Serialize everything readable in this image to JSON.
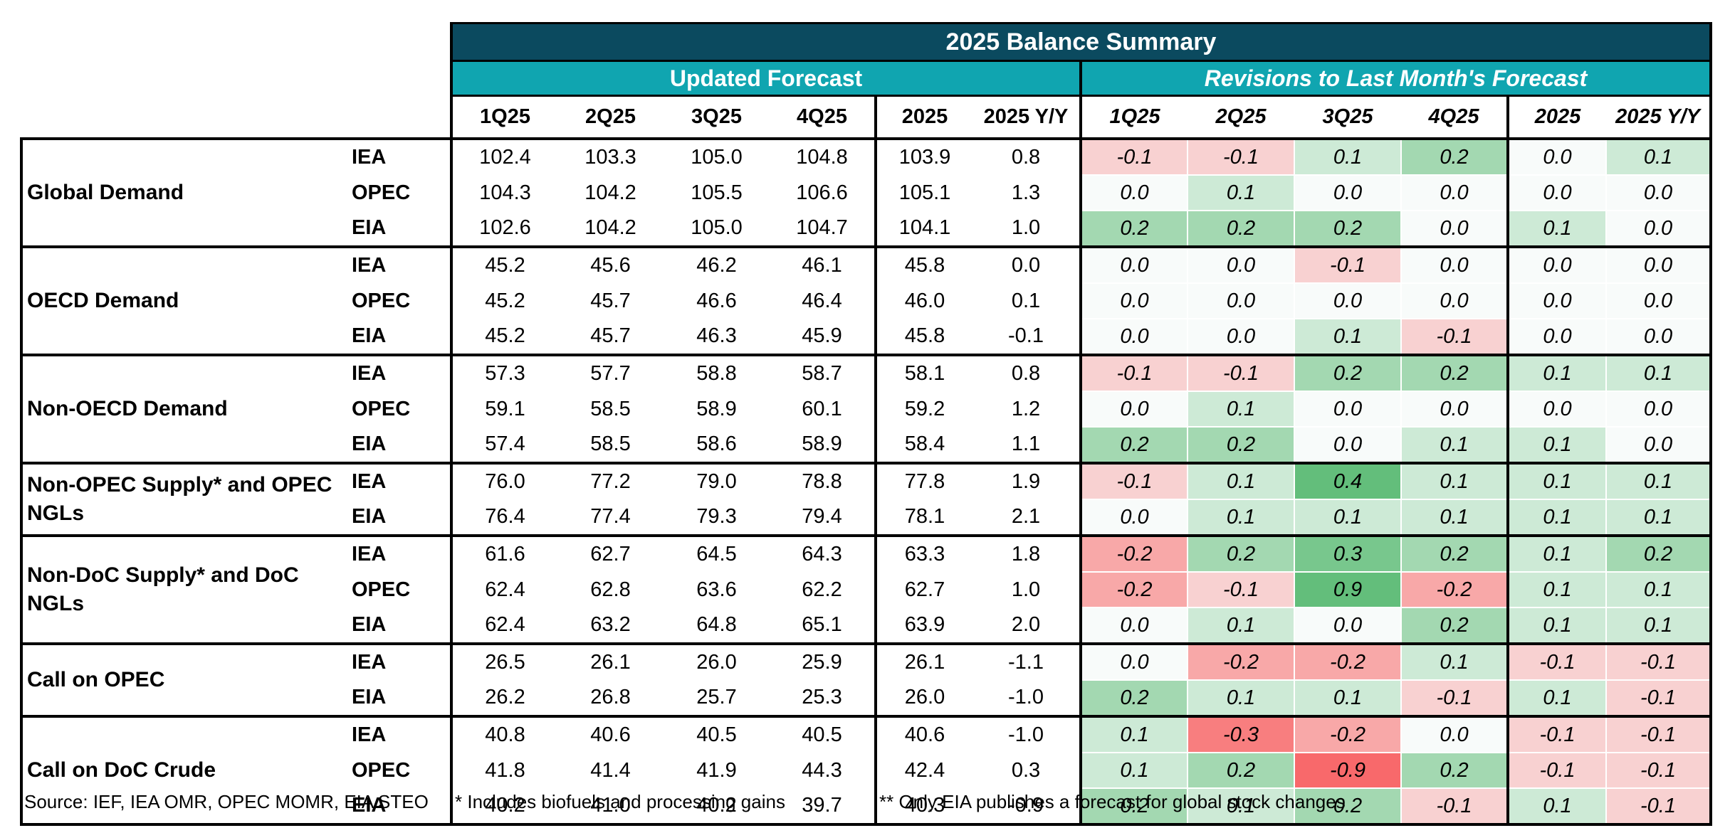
{
  "title": "2025 Balance Summary",
  "groups": [
    "Updated Forecast",
    "Revisions to Last Month's Forecast"
  ],
  "columns": [
    "1Q25",
    "2Q25",
    "3Q25",
    "4Q25",
    "2025",
    "2025 Y/Y"
  ],
  "sections": [
    {
      "label": "Global Demand",
      "rows": [
        {
          "source": "IEA",
          "forecast": [
            "102.4",
            "103.3",
            "105.0",
            "104.8",
            "103.9",
            "0.8"
          ],
          "revisions": [
            "-0.1",
            "-0.1",
            "0.1",
            "0.2",
            "0.0",
            "0.1"
          ]
        },
        {
          "source": "OPEC",
          "forecast": [
            "104.3",
            "104.2",
            "105.5",
            "106.6",
            "105.1",
            "1.3"
          ],
          "revisions": [
            "0.0",
            "0.1",
            "0.0",
            "0.0",
            "0.0",
            "0.0"
          ]
        },
        {
          "source": "EIA",
          "forecast": [
            "102.6",
            "104.2",
            "105.0",
            "104.7",
            "104.1",
            "1.0"
          ],
          "revisions": [
            "0.2",
            "0.2",
            "0.2",
            "0.0",
            "0.1",
            "0.0"
          ]
        }
      ]
    },
    {
      "label": "OECD Demand",
      "rows": [
        {
          "source": "IEA",
          "forecast": [
            "45.2",
            "45.6",
            "46.2",
            "46.1",
            "45.8",
            "0.0"
          ],
          "revisions": [
            "0.0",
            "0.0",
            "-0.1",
            "0.0",
            "0.0",
            "0.0"
          ]
        },
        {
          "source": "OPEC",
          "forecast": [
            "45.2",
            "45.7",
            "46.6",
            "46.4",
            "46.0",
            "0.1"
          ],
          "revisions": [
            "0.0",
            "0.0",
            "0.0",
            "0.0",
            "0.0",
            "0.0"
          ]
        },
        {
          "source": "EIA",
          "forecast": [
            "45.2",
            "45.7",
            "46.3",
            "45.9",
            "45.8",
            "-0.1"
          ],
          "revisions": [
            "0.0",
            "0.0",
            "0.1",
            "-0.1",
            "0.0",
            "0.0"
          ]
        }
      ]
    },
    {
      "label": "Non-OECD Demand",
      "rows": [
        {
          "source": "IEA",
          "forecast": [
            "57.3",
            "57.7",
            "58.8",
            "58.7",
            "58.1",
            "0.8"
          ],
          "revisions": [
            "-0.1",
            "-0.1",
            "0.2",
            "0.2",
            "0.1",
            "0.1"
          ]
        },
        {
          "source": "OPEC",
          "forecast": [
            "59.1",
            "58.5",
            "58.9",
            "60.1",
            "59.2",
            "1.2"
          ],
          "revisions": [
            "0.0",
            "0.1",
            "0.0",
            "0.0",
            "0.0",
            "0.0"
          ]
        },
        {
          "source": "EIA",
          "forecast": [
            "57.4",
            "58.5",
            "58.6",
            "58.9",
            "58.4",
            "1.1"
          ],
          "revisions": [
            "0.2",
            "0.2",
            "0.0",
            "0.1",
            "0.1",
            "0.0"
          ]
        }
      ]
    },
    {
      "label": "Non-OPEC Supply* and OPEC NGLs",
      "rows": [
        {
          "source": "IEA",
          "forecast": [
            "76.0",
            "77.2",
            "79.0",
            "78.8",
            "77.8",
            "1.9"
          ],
          "revisions": [
            "-0.1",
            "0.1",
            "0.4",
            "0.1",
            "0.1",
            "0.1"
          ]
        },
        {
          "source": "EIA",
          "forecast": [
            "76.4",
            "77.4",
            "79.3",
            "79.4",
            "78.1",
            "2.1"
          ],
          "revisions": [
            "0.0",
            "0.1",
            "0.1",
            "0.1",
            "0.1",
            "0.1"
          ]
        }
      ]
    },
    {
      "label": "Non-DoC Supply* and DoC NGLs",
      "rows": [
        {
          "source": "IEA",
          "forecast": [
            "61.6",
            "62.7",
            "64.5",
            "64.3",
            "63.3",
            "1.8"
          ],
          "revisions": [
            "-0.2",
            "0.2",
            "0.3",
            "0.2",
            "0.1",
            "0.2"
          ]
        },
        {
          "source": "OPEC",
          "forecast": [
            "62.4",
            "62.8",
            "63.6",
            "62.2",
            "62.7",
            "1.0"
          ],
          "revisions": [
            "-0.2",
            "-0.1",
            "0.9",
            "-0.2",
            "0.1",
            "0.1"
          ]
        },
        {
          "source": "EIA",
          "forecast": [
            "62.4",
            "63.2",
            "64.8",
            "65.1",
            "63.9",
            "2.0"
          ],
          "revisions": [
            "0.0",
            "0.1",
            "0.0",
            "0.2",
            "0.1",
            "0.1"
          ]
        }
      ]
    },
    {
      "label": "Call on OPEC",
      "rows": [
        {
          "source": "IEA",
          "forecast": [
            "26.5",
            "26.1",
            "26.0",
            "25.9",
            "26.1",
            "-1.1"
          ],
          "revisions": [
            "0.0",
            "-0.2",
            "-0.2",
            "0.1",
            "-0.1",
            "-0.1"
          ]
        },
        {
          "source": "EIA",
          "forecast": [
            "26.2",
            "26.8",
            "25.7",
            "25.3",
            "26.0",
            "-1.0"
          ],
          "revisions": [
            "0.2",
            "0.1",
            "0.1",
            "-0.1",
            "0.1",
            "-0.1"
          ]
        }
      ]
    },
    {
      "label": "Call on DoC Crude",
      "rows": [
        {
          "source": "IEA",
          "forecast": [
            "40.8",
            "40.6",
            "40.5",
            "40.5",
            "40.6",
            "-1.0"
          ],
          "revisions": [
            "0.1",
            "-0.3",
            "-0.2",
            "0.0",
            "-0.1",
            "-0.1"
          ]
        },
        {
          "source": "OPEC",
          "forecast": [
            "41.8",
            "41.4",
            "41.9",
            "44.3",
            "42.4",
            "0.3"
          ],
          "revisions": [
            "0.1",
            "0.2",
            "-0.9",
            "0.2",
            "-0.1",
            "-0.1"
          ]
        },
        {
          "source": "EIA",
          "forecast": [
            "40.2",
            "41.0",
            "40.2",
            "39.7",
            "40.3",
            "-0.9"
          ],
          "revisions": [
            "0.2",
            "0.1",
            "0.2",
            "-0.1",
            "0.1",
            "-0.1"
          ]
        }
      ]
    }
  ],
  "footnotes": [
    "Source: IEF, IEA OMR, OPEC MOMR, EIA STEO",
    "* Includes biofuels and processing gains",
    "** Only EIA publishes a forecast for global stock changes"
  ]
}
